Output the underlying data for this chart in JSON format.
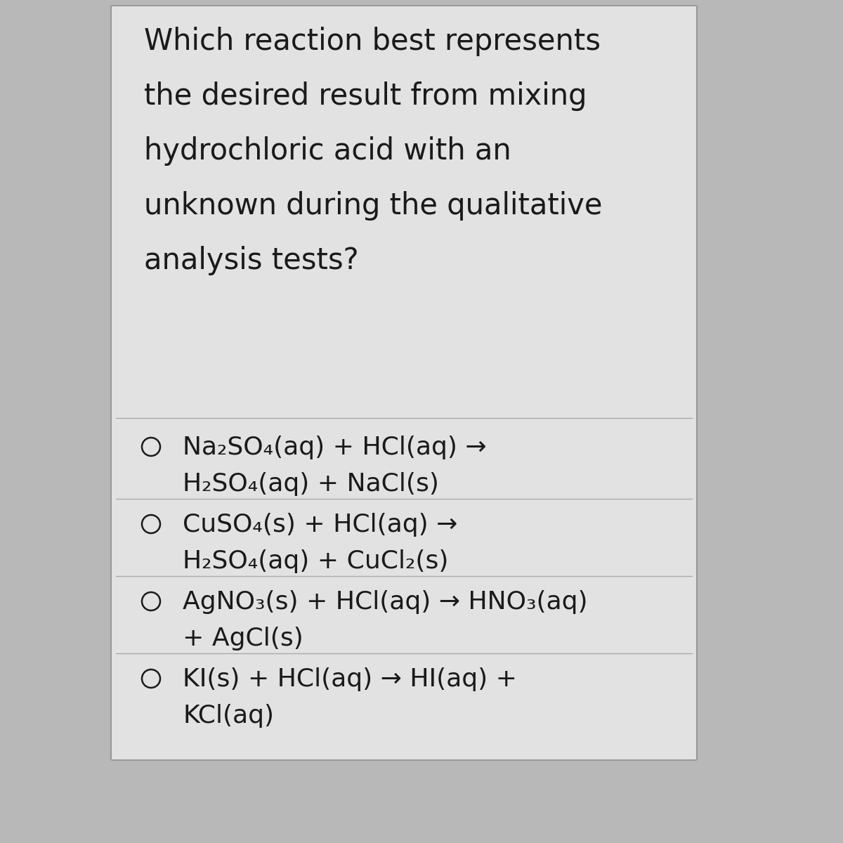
{
  "bg_color": "#b8b8b8",
  "card_color": "#e2e2e2",
  "card_color2": "#d8d8d8",
  "text_color": "#1a1a1a",
  "divider_color": "#aaaaaa",
  "question_lines": [
    "Which reaction best represents",
    "the desired result from mixing",
    "hydrochloric acid with an",
    "unknown during the qualitative",
    "analysis tests?"
  ],
  "options": [
    {
      "line1": "Na₂SO₄(aq) + HCl(aq) →",
      "line2": "H₂SO₄(aq) + NaCl(s)"
    },
    {
      "line1": "CuSO₄(s) + HCl(aq) →",
      "line2": "H₂SO₄(aq) + CuCl₂(s)"
    },
    {
      "line1": "AgNO₃(s) + HCl(aq) → HNO₃(aq)",
      "line2": "+ AgCl(s)"
    },
    {
      "line1": "KI(s) + HCl(aq) → HI(aq) +",
      "line2": "KCl(aq)"
    }
  ],
  "font_size_question": 30,
  "font_size_options": 26,
  "figsize": [
    12,
    12
  ],
  "dpi": 100
}
